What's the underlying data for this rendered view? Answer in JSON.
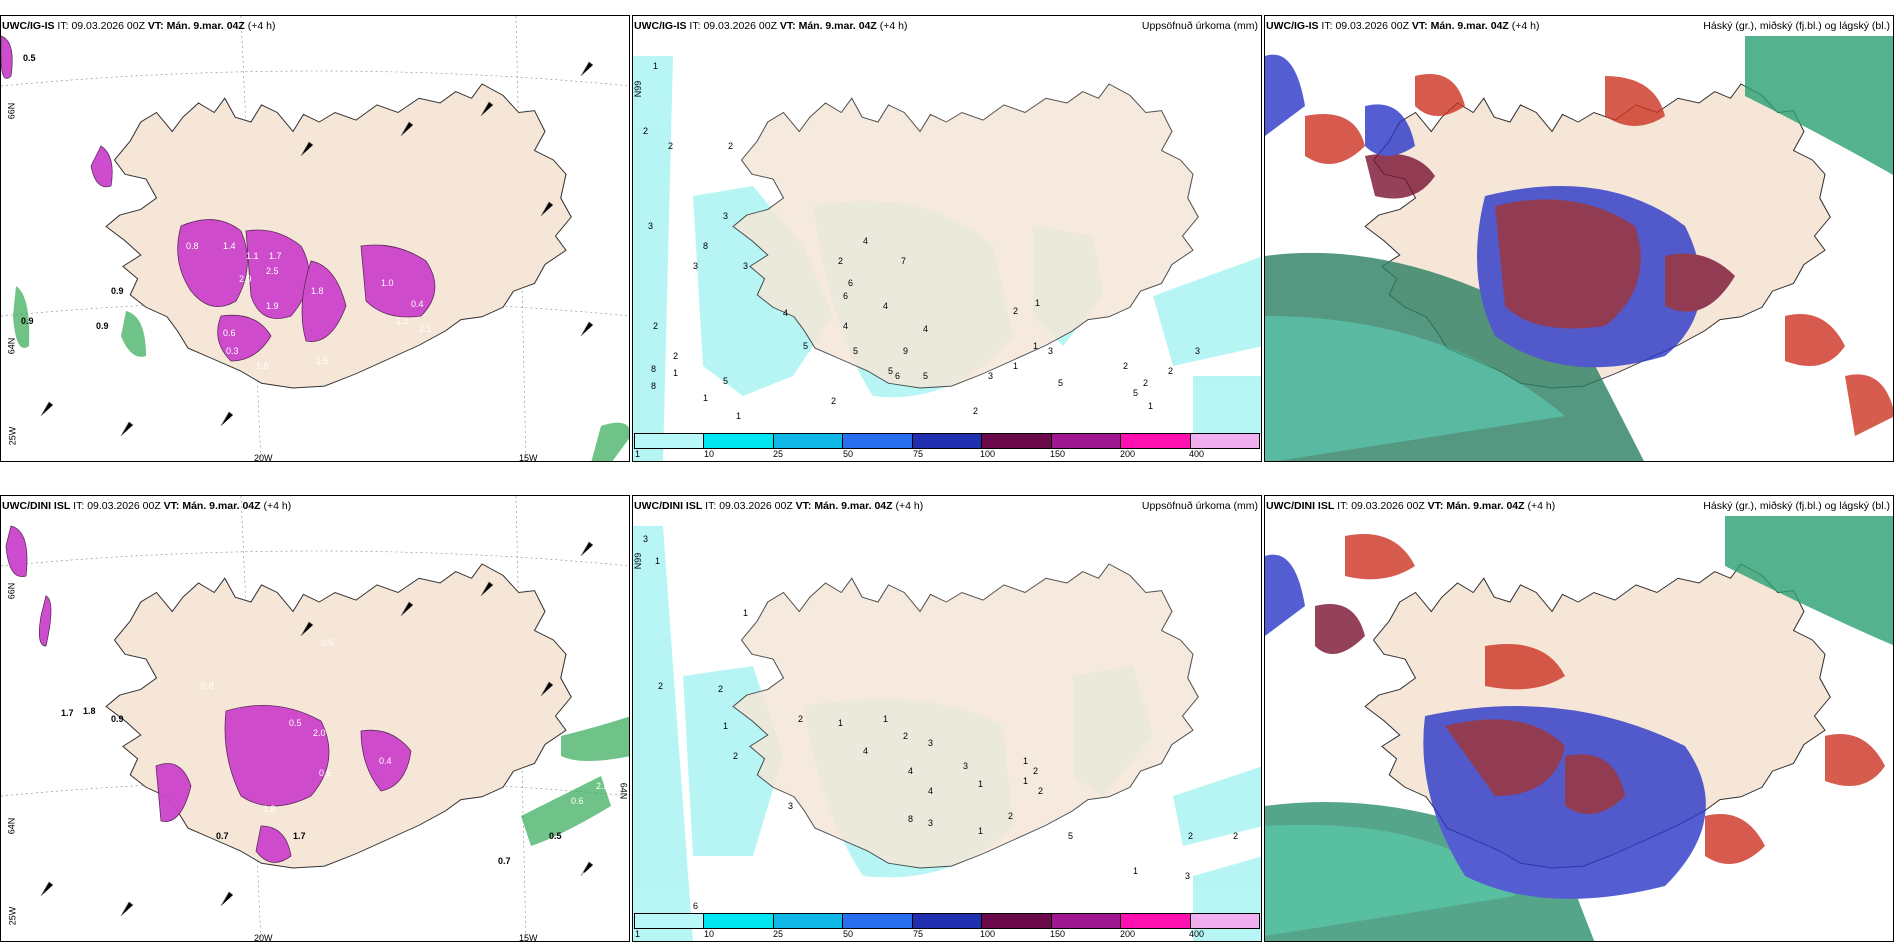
{
  "colors": {
    "land": "#f5e6d8",
    "coast": "#333333",
    "purple": "#cc33cc",
    "darkpurple": "#7a1f7a",
    "green": "#33aa55",
    "precip_light": "#b0f5f5",
    "cloud_high": "#2b8f6e",
    "cloud_mid": "#cc3322",
    "cloud_low": "#2233cc",
    "cloud_dark": "#7a1030"
  },
  "colorbar": {
    "colors": [
      "#b8f8f8",
      "#00e6f0",
      "#10b8e8",
      "#2a6ef0",
      "#1f2fb0",
      "#6a0a4a",
      "#a01890",
      "#ff10b0",
      "#f0b0f0"
    ],
    "ticks": [
      "1",
      "10",
      "25",
      "50",
      "75",
      "100",
      "150",
      "200",
      "400"
    ]
  },
  "rows": [
    {
      "panels": [
        {
          "model": "UWC/IG-IS",
          "it_label": "IT:",
          "it_value": "09.03.2026 00Z",
          "vt_label": "VT:",
          "vt_value": "Mán. 9.mar. 04Z",
          "lead": "(+4 h)",
          "right_title": "",
          "lat_labels": [
            "66N",
            "64N"
          ],
          "lon_labels": [
            "25W",
            "20W",
            "15W"
          ],
          "values": [
            "0.5",
            "0.9",
            "0.9",
            "0.9",
            "0.8",
            "1.4",
            "1.1",
            "1.7",
            "2.9",
            "2.5",
            "1.8",
            "1.9",
            "0.6",
            "0.3",
            "1.6",
            "1.5",
            "1.0",
            "0.4",
            "1.1",
            "2.1"
          ]
        },
        {
          "model": "UWC/IG-IS",
          "it_label": "IT:",
          "it_value": "09.03.2026 00Z",
          "vt_label": "VT:",
          "vt_value": "Mán. 9.mar. 04Z",
          "lead": "(+4 h)",
          "right_title": "Uppsöfnuð úrkoma (mm)",
          "lat_labels": [
            "66N"
          ],
          "lon_labels": [],
          "values": [
            "1",
            "2",
            "2",
            "3",
            "2",
            "3",
            "3",
            "8",
            "3",
            "2",
            "2",
            "8",
            "8",
            "1",
            "5",
            "1",
            "1",
            "4",
            "5",
            "6",
            "4",
            "4",
            "5",
            "2",
            "6",
            "4",
            "5",
            "9",
            "6",
            "5",
            "3",
            "2",
            "1",
            "5",
            "2",
            "1",
            "3",
            "7",
            "4",
            "2",
            "1",
            "2",
            "5",
            "2",
            "2",
            "1",
            "3"
          ]
        },
        {
          "model": "UWC/IG-IS",
          "it_label": "IT:",
          "it_value": "09.03.2026 00Z",
          "vt_label": "VT:",
          "vt_value": "Mán. 9.mar. 04Z",
          "lead": "(+4 h)",
          "right_title": "Háský (gr.), miðský (fj.bl.) og lágský (bl.)",
          "lat_labels": [],
          "lon_labels": [],
          "values": []
        }
      ]
    },
    {
      "panels": [
        {
          "model": "UWC/DINI ISL",
          "it_label": "IT:",
          "it_value": "09.03.2026 00Z",
          "vt_label": "VT:",
          "vt_value": "Mán. 9.mar. 04Z",
          "lead": "(+4 h)",
          "right_title": "",
          "lat_labels": [
            "66N",
            "64N",
            "64N"
          ],
          "lon_labels": [
            "25W",
            "20W",
            "15W"
          ],
          "values": [
            "1.7",
            "1.8",
            "0.9",
            "0.8",
            "0.5",
            "0.5",
            "2.0",
            "0.4",
            "0.5",
            "1.8",
            "1.7",
            "0.7",
            "0.7",
            "0.5",
            "0.4",
            "2.2",
            "0.6",
            "0.4"
          ]
        },
        {
          "model": "UWC/DINI ISL",
          "it_label": "IT:",
          "it_value": "09.03.2026 00Z",
          "vt_label": "VT:",
          "vt_value": "Mán. 9.mar. 04Z",
          "lead": "(+4 h)",
          "right_title": "Uppsöfnuð úrkoma (mm)",
          "lat_labels": [
            "66N"
          ],
          "lon_labels": [],
          "values": [
            "3",
            "1",
            "2",
            "1",
            "2",
            "1",
            "2",
            "2",
            "3",
            "1",
            "1",
            "4",
            "2",
            "3",
            "4",
            "4",
            "3",
            "1",
            "8",
            "3",
            "1",
            "5",
            "1",
            "1",
            "2",
            "2",
            "2",
            "1",
            "3",
            "6",
            "2",
            "2"
          ]
        },
        {
          "model": "UWC/DINI ISL",
          "it_label": "IT:",
          "it_value": "09.03.2026 00Z",
          "vt_label": "VT:",
          "vt_value": "Mán. 9.mar. 04Z",
          "lead": "(+4 h)",
          "right_title": "Háský (gr.), miðský (fj.bl.) og lágský (bl.)",
          "lat_labels": [],
          "lon_labels": [],
          "values": []
        }
      ]
    }
  ]
}
